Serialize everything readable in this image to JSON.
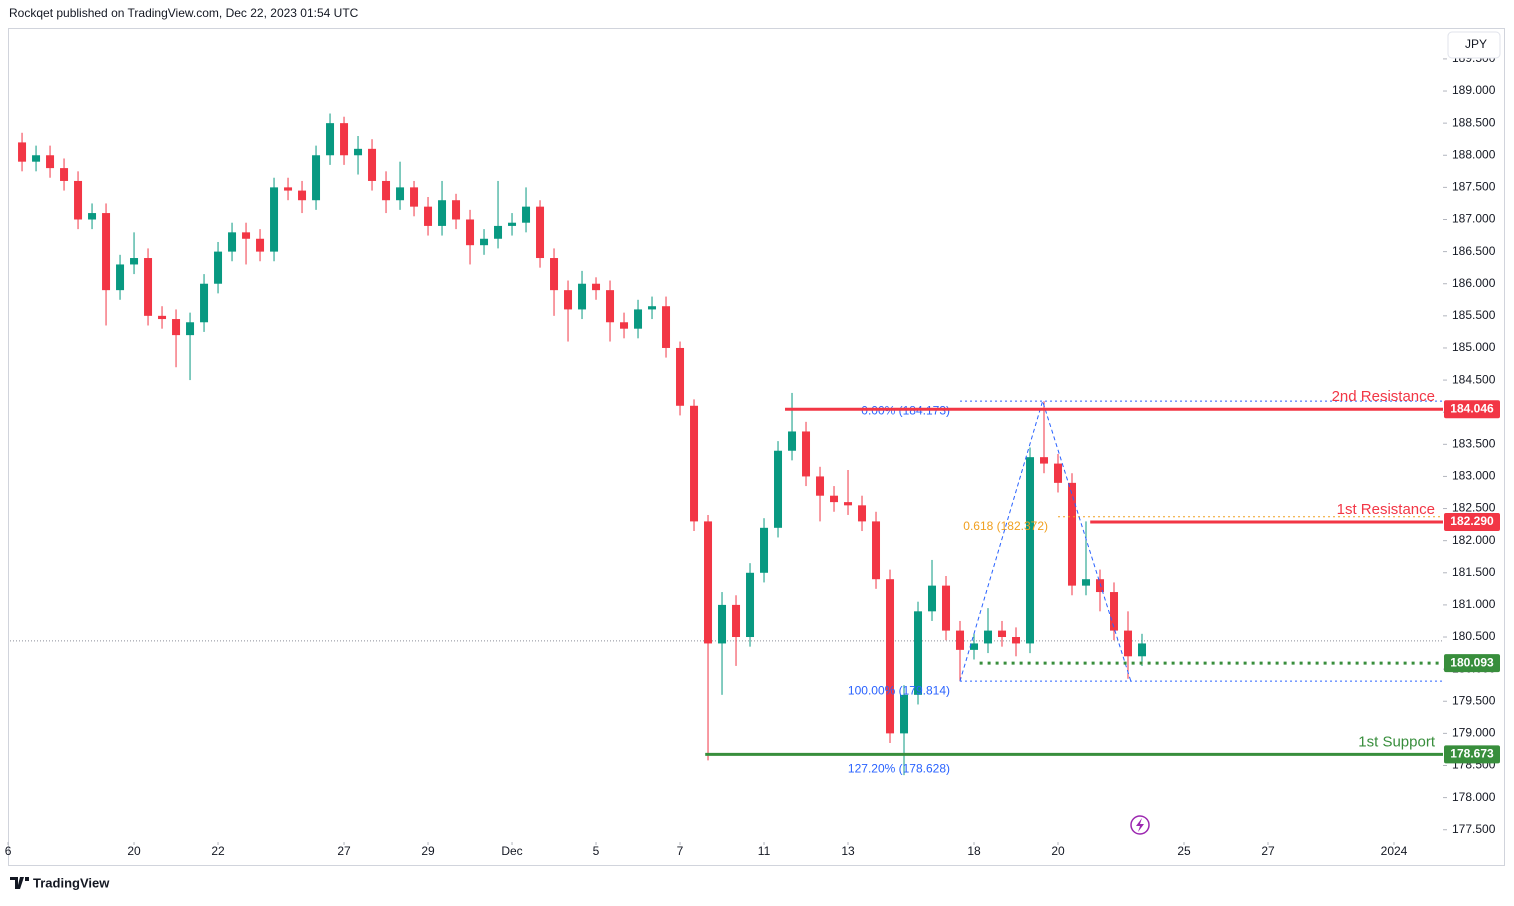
{
  "header": {
    "publisher": "Rockqet published on TradingView.com, Dec 22, 2023 01:54 UTC"
  },
  "chart_data": {
    "type": "candlestick",
    "currency": "JPY",
    "up_color": "#089981",
    "down_color": "#f23645",
    "x": [
      0,
      1,
      2,
      3,
      4,
      5,
      6,
      7,
      8,
      9,
      10,
      11,
      12,
      13,
      14,
      15,
      16,
      17,
      18,
      19,
      20,
      21,
      22,
      23,
      24,
      25,
      26,
      27,
      28,
      29,
      30,
      31,
      32,
      33,
      34,
      35,
      36,
      37,
      38,
      39,
      40,
      41,
      42,
      43,
      44,
      45,
      46,
      47,
      48,
      49,
      50,
      51,
      52,
      53,
      54,
      55,
      56,
      57,
      58,
      59,
      60,
      61,
      62,
      63,
      64,
      65,
      66,
      67,
      68,
      69,
      70,
      71,
      72,
      73,
      74,
      75,
      76,
      77,
      78,
      79,
      80
    ],
    "open": [
      188.2,
      187.9,
      188.0,
      187.8,
      187.6,
      187.0,
      187.1,
      185.9,
      186.3,
      186.4,
      185.5,
      185.45,
      185.2,
      185.4,
      186.0,
      186.5,
      186.8,
      186.7,
      186.5,
      187.5,
      187.45,
      187.3,
      188.0,
      188.5,
      188.0,
      188.1,
      187.6,
      187.3,
      187.5,
      187.2,
      186.9,
      187.3,
      187.0,
      186.6,
      186.7,
      186.9,
      186.95,
      187.2,
      186.4,
      185.9,
      185.6,
      186.0,
      185.9,
      185.4,
      185.3,
      185.6,
      185.65,
      185.0,
      184.1,
      182.3,
      180.4,
      181.0,
      180.5,
      181.5,
      182.2,
      183.4,
      183.7,
      183.0,
      182.7,
      182.6,
      182.55,
      182.3,
      181.4,
      179.0,
      179.6,
      180.9,
      181.3,
      180.6,
      180.3,
      180.4,
      180.6,
      180.5,
      180.4,
      183.3,
      183.2,
      182.9,
      181.3,
      181.4,
      181.2,
      180.6,
      180.2
    ],
    "high": [
      188.35,
      188.15,
      188.15,
      187.95,
      187.75,
      187.25,
      187.25,
      186.45,
      186.8,
      186.55,
      185.65,
      185.6,
      185.55,
      186.15,
      186.65,
      186.95,
      186.95,
      186.85,
      187.65,
      187.65,
      187.6,
      188.15,
      188.65,
      188.6,
      188.3,
      188.25,
      187.75,
      187.9,
      187.6,
      187.35,
      187.6,
      187.4,
      187.15,
      186.85,
      187.6,
      187.1,
      187.5,
      187.3,
      186.55,
      186.05,
      186.2,
      186.1,
      186.05,
      185.55,
      185.75,
      185.8,
      185.8,
      185.1,
      184.2,
      182.4,
      181.2,
      181.15,
      181.65,
      182.35,
      183.55,
      184.3,
      183.85,
      183.15,
      182.85,
      183.1,
      182.7,
      182.45,
      181.55,
      179.75,
      181.05,
      181.7,
      181.45,
      180.75,
      180.55,
      180.95,
      180.75,
      180.65,
      183.45,
      184.17,
      183.35,
      183.05,
      182.3,
      181.55,
      181.35,
      180.9,
      180.55
    ],
    "low": [
      187.75,
      187.75,
      187.65,
      187.45,
      186.85,
      186.85,
      185.35,
      185.75,
      186.15,
      185.35,
      185.3,
      184.7,
      184.5,
      185.25,
      185.85,
      186.35,
      186.3,
      186.35,
      186.35,
      187.3,
      187.1,
      187.15,
      187.85,
      187.85,
      187.7,
      187.45,
      187.1,
      187.15,
      187.05,
      186.75,
      186.75,
      186.85,
      186.3,
      186.45,
      186.55,
      186.75,
      186.8,
      186.25,
      185.5,
      185.1,
      185.45,
      185.75,
      185.1,
      185.15,
      185.15,
      185.45,
      184.85,
      183.95,
      182.15,
      178.58,
      179.6,
      180.05,
      180.35,
      181.35,
      182.05,
      183.25,
      182.85,
      182.3,
      182.45,
      182.4,
      182.15,
      181.25,
      178.85,
      178.35,
      179.45,
      180.75,
      180.45,
      179.81,
      180.15,
      180.25,
      180.35,
      180.2,
      180.25,
      183.05,
      182.75,
      181.15,
      181.15,
      180.9,
      180.45,
      179.85,
      180.05
    ],
    "close": [
      187.9,
      188.0,
      187.8,
      187.6,
      187.0,
      187.1,
      185.9,
      186.3,
      186.4,
      185.5,
      185.45,
      185.2,
      185.4,
      186.0,
      186.5,
      186.8,
      186.7,
      186.5,
      187.5,
      187.45,
      187.3,
      188.0,
      188.5,
      188.0,
      188.1,
      187.6,
      187.3,
      187.5,
      187.2,
      186.9,
      187.3,
      187.0,
      186.6,
      186.7,
      186.9,
      186.95,
      187.2,
      186.4,
      185.9,
      185.6,
      186.0,
      185.9,
      185.4,
      185.3,
      185.6,
      185.65,
      185.0,
      184.1,
      182.3,
      180.4,
      181.0,
      180.5,
      181.5,
      182.2,
      183.4,
      183.7,
      183.0,
      182.7,
      182.6,
      182.55,
      182.3,
      181.4,
      179.0,
      179.6,
      180.9,
      181.3,
      180.6,
      180.3,
      180.4,
      180.6,
      180.5,
      180.4,
      183.3,
      183.2,
      182.9,
      181.3,
      181.4,
      181.2,
      180.6,
      180.2,
      180.4
    ],
    "xlim": [
      -0.86,
      101.5
    ],
    "xticks": [
      {
        "value": -1,
        "label": "6"
      },
      {
        "value": 8,
        "label": "20"
      },
      {
        "value": 14,
        "label": "22"
      },
      {
        "value": 23,
        "label": "27"
      },
      {
        "value": 29,
        "label": "29"
      },
      {
        "value": 35,
        "label": "Dec"
      },
      {
        "value": 41,
        "label": "5"
      },
      {
        "value": 47,
        "label": "7"
      },
      {
        "value": 53,
        "label": "11"
      },
      {
        "value": 59,
        "label": "13"
      },
      {
        "value": 68,
        "label": "18"
      },
      {
        "value": 74,
        "label": "20"
      },
      {
        "value": 83,
        "label": "25"
      },
      {
        "value": 89,
        "label": "27"
      },
      {
        "value": 98,
        "label": "2024"
      }
    ],
    "ylim": [
      177.34,
      189.95
    ],
    "yticks": [
      {
        "value": 177.5,
        "label": "177.500"
      },
      {
        "value": 178,
        "label": "178.000"
      },
      {
        "value": 178.5,
        "label": "178.500"
      },
      {
        "value": 179,
        "label": "179.000"
      },
      {
        "value": 179.5,
        "label": "179.500"
      },
      {
        "value": 180,
        "label": "180.000"
      },
      {
        "value": 180.5,
        "label": "180.500"
      },
      {
        "value": 181,
        "label": "181.000"
      },
      {
        "value": 181.5,
        "label": "181.500"
      },
      {
        "value": 182,
        "label": "182.000"
      },
      {
        "value": 182.5,
        "label": "182.500"
      },
      {
        "value": 183,
        "label": "183.000"
      },
      {
        "value": 183.5,
        "label": "183.500"
      },
      {
        "value": 184,
        "label": "184.000"
      },
      {
        "value": 184.5,
        "label": "184.500"
      },
      {
        "value": 185,
        "label": "185.000"
      },
      {
        "value": 185.5,
        "label": "185.500"
      },
      {
        "value": 186,
        "label": "186.000"
      },
      {
        "value": 186.5,
        "label": "186.500"
      },
      {
        "value": 187,
        "label": "187.000"
      },
      {
        "value": 187.5,
        "label": "187.500"
      },
      {
        "value": 188,
        "label": "188.000"
      },
      {
        "value": 188.5,
        "label": "188.500"
      },
      {
        "value": 189,
        "label": "189.000"
      },
      {
        "value": 189.5,
        "label": "189.500"
      }
    ],
    "last_price_line": 180.44,
    "levels": [
      {
        "label": "2nd Resistance",
        "value": 184.046,
        "start": 54.5,
        "color": "#f23645"
      },
      {
        "label": "1st Resistance",
        "value": 182.29,
        "value_label": "182.290",
        "start": 76.3,
        "color": "#f23645"
      },
      {
        "label": "1st Support",
        "value": 178.673,
        "start": 48.8,
        "color": "#388e3c"
      }
    ],
    "current_level": {
      "value": 180.093,
      "start": 68.4,
      "color": "#388e3c"
    },
    "fib": {
      "color": "#2962ff",
      "levels": [
        {
          "label": "0.00% (184.173)",
          "value": 184.173,
          "start": 67,
          "color": "#2962ff"
        },
        {
          "label": "0.618 (182.372)",
          "value": 182.372,
          "start": 74,
          "color": "#f0a020"
        },
        {
          "label": "100.00% (179.814)",
          "value": 179.814,
          "start": 67,
          "color": "#2962ff"
        },
        {
          "label": "127.20% (178.628)",
          "value": 178.628,
          "start": 67,
          "color": "#2962ff"
        }
      ],
      "path": {
        "x": [
          67,
          72.9,
          79.2
        ],
        "y": [
          179.814,
          184.173,
          179.814
        ]
      }
    }
  },
  "footer": {
    "brand": "TradingView"
  }
}
